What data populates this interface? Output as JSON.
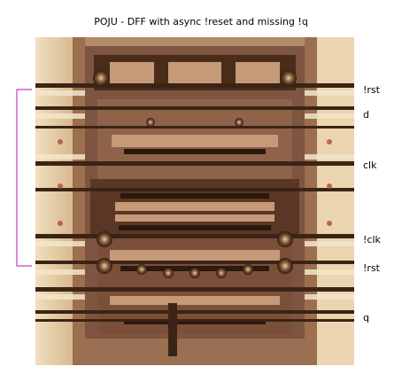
{
  "figure": {
    "title": "POJU - DFF with async !reset and missing !q",
    "colors": {
      "die_base": "#b58a67",
      "dark_trace": "#3b2416",
      "metal_highlight": "#f3e6c8",
      "bracket": "#c040c0"
    }
  },
  "labels": {
    "rst_top": "!rst",
    "d": "d",
    "clk": "clk",
    "nclk": "!clk",
    "rst_bottom": "!rst",
    "q": "q"
  }
}
